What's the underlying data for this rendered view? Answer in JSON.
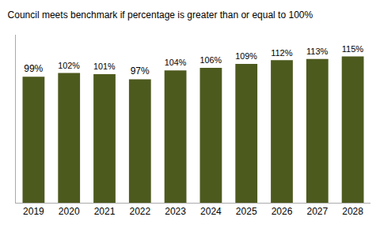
{
  "chart_data": {
    "type": "bar",
    "title": "Council meets benchmark if percentage is greater than or equal to 100%",
    "categories": [
      "2019",
      "2020",
      "2021",
      "2022",
      "2023",
      "2024",
      "2025",
      "2026",
      "2027",
      "2028"
    ],
    "values": [
      99,
      102,
      101,
      97,
      104,
      106,
      109,
      112,
      113,
      115
    ],
    "value_labels": [
      "99%",
      "102%",
      "101%",
      "97%",
      "104%",
      "106%",
      "109%",
      "112%",
      "113%",
      "115%"
    ],
    "color": "#4d5a1e",
    "ylim": [
      0,
      132
    ],
    "data_labels": true,
    "tick_labels": "x",
    "grid": false
  }
}
